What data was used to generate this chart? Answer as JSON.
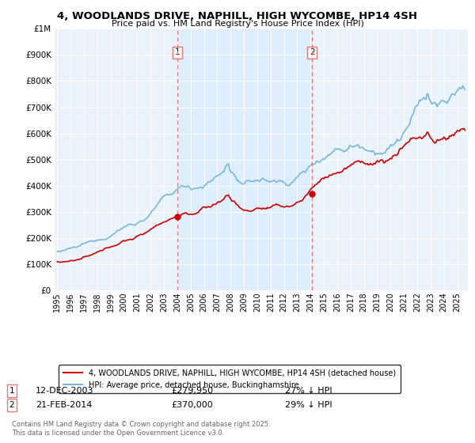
{
  "title": "4, WOODLANDS DRIVE, NAPHILL, HIGH WYCOMBE, HP14 4SH",
  "subtitle": "Price paid vs. HM Land Registry's House Price Index (HPI)",
  "legend_line1": "4, WOODLANDS DRIVE, NAPHILL, HIGH WYCOMBE, HP14 4SH (detached house)",
  "legend_line2": "HPI: Average price, detached house, Buckinghamshire",
  "footnote": "Contains HM Land Registry data © Crown copyright and database right 2025.\nThis data is licensed under the Open Government Licence v3.0.",
  "purchase1_date": "12-DEC-2003",
  "purchase1_price": 279950,
  "purchase1_label": "27% ↓ HPI",
  "purchase2_date": "21-FEB-2014",
  "purchase2_price": 370000,
  "purchase2_label": "29% ↓ HPI",
  "vline1_year": 2004.0,
  "vline2_year": 2014.12,
  "hpi_color": "#7ab8d9",
  "price_color": "#cc0000",
  "vline_color": "#e87878",
  "shade_color": "#ddeeff",
  "background_color": "#eaf2fb",
  "ylim": [
    0,
    1000000
  ],
  "xlim_start": 1994.8,
  "xlim_end": 2025.8
}
